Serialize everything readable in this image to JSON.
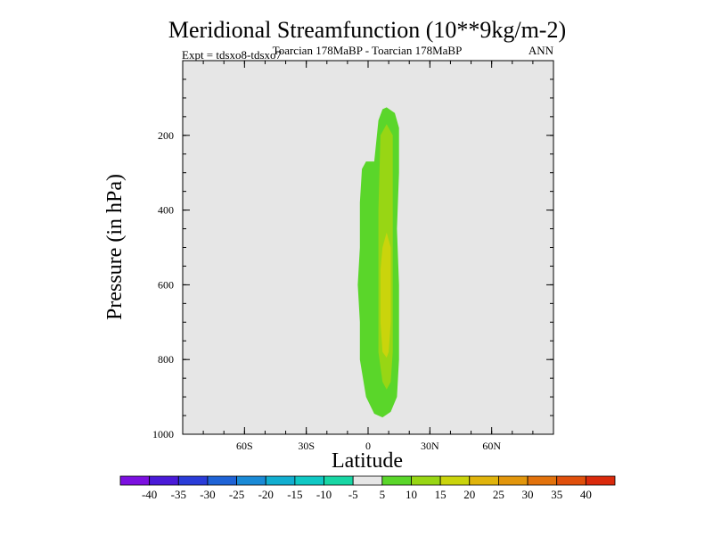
{
  "chart_data": {
    "type": "contour",
    "title": "Meridional Streamfunction (10**9kg/m-2)",
    "subtitle": "Toarcian 178MaBP - Toarcian 178MaBP",
    "expt_label": "Expt = tdsxo8-tdsxo7",
    "season_label": "ANN",
    "xlabel": "Latitude",
    "ylabel": "Pressure (in hPa)",
    "xlim": [
      -90,
      90
    ],
    "ylim": [
      1000,
      0
    ],
    "x_ticks": [
      {
        "value": -60,
        "label": "60S"
      },
      {
        "value": -30,
        "label": "30S"
      },
      {
        "value": 0,
        "label": "0"
      },
      {
        "value": 30,
        "label": "30N"
      },
      {
        "value": 60,
        "label": "60N"
      }
    ],
    "y_ticks": [
      {
        "value": 200,
        "label": "200"
      },
      {
        "value": 400,
        "label": "400"
      },
      {
        "value": 600,
        "label": "600"
      },
      {
        "value": 800,
        "label": "800"
      },
      {
        "value": 1000,
        "label": "1000"
      }
    ],
    "background_color": "#e6e6e6",
    "levels": [
      -40,
      -35,
      -30,
      -25,
      -20,
      -15,
      -10,
      -5,
      5,
      10,
      15,
      20,
      25,
      30,
      35,
      40
    ],
    "colorbar": [
      {
        "color": "#7c10e0",
        "label": "-40"
      },
      {
        "color": "#4a1ad8",
        "label": "-35"
      },
      {
        "color": "#2a3cd8",
        "label": "-30"
      },
      {
        "color": "#1f63d6",
        "label": "-25"
      },
      {
        "color": "#1a8ad6",
        "label": "-20"
      },
      {
        "color": "#12aed0",
        "label": "-15"
      },
      {
        "color": "#10c8c4",
        "label": "-10"
      },
      {
        "color": "#18d6a4",
        "label": "-5"
      },
      {
        "color": "#e6e6e6",
        "label": "5"
      },
      {
        "color": "#5ad62a",
        "label": "10"
      },
      {
        "color": "#98d614",
        "label": "15"
      },
      {
        "color": "#cad40c",
        "label": "20"
      },
      {
        "color": "#e0b40c",
        "label": "25"
      },
      {
        "color": "#e2960c",
        "label": "30"
      },
      {
        "color": "#e2720c",
        "label": "35"
      },
      {
        "color": "#e0500c",
        "label": "40"
      },
      {
        "color": "#da2a0c",
        "label": ""
      }
    ],
    "contours": [
      {
        "level": "5 to 10",
        "color": "#5ad62a",
        "points": [
          [
            9,
            125
          ],
          [
            13,
            140
          ],
          [
            15,
            180
          ],
          [
            15,
            300
          ],
          [
            14,
            450
          ],
          [
            15,
            600
          ],
          [
            15,
            800
          ],
          [
            14,
            900
          ],
          [
            11,
            940
          ],
          [
            7,
            955
          ],
          [
            3,
            945
          ],
          [
            -1,
            900
          ],
          [
            -4,
            800
          ],
          [
            -4,
            700
          ],
          [
            -5,
            600
          ],
          [
            -4,
            500
          ],
          [
            -4,
            380
          ],
          [
            -3,
            290
          ],
          [
            -1,
            270
          ],
          [
            3,
            270
          ],
          [
            5,
            160
          ],
          [
            7,
            130
          ],
          [
            9,
            125
          ]
        ]
      },
      {
        "level": "10 to 15",
        "color": "#98d614",
        "points": [
          [
            9,
            170
          ],
          [
            12,
            200
          ],
          [
            12,
            400
          ],
          [
            12,
            600
          ],
          [
            12,
            780
          ],
          [
            11,
            860
          ],
          [
            9,
            880
          ],
          [
            7,
            860
          ],
          [
            5,
            780
          ],
          [
            5,
            600
          ],
          [
            5,
            400
          ],
          [
            6,
            200
          ],
          [
            9,
            170
          ]
        ]
      },
      {
        "level": "15 to 20",
        "color": "#cad40c",
        "points": [
          [
            9,
            460
          ],
          [
            11,
            500
          ],
          [
            11,
            700
          ],
          [
            10,
            780
          ],
          [
            9,
            795
          ],
          [
            7,
            780
          ],
          [
            6,
            700
          ],
          [
            6,
            560
          ],
          [
            7,
            500
          ],
          [
            9,
            460
          ]
        ]
      }
    ]
  }
}
